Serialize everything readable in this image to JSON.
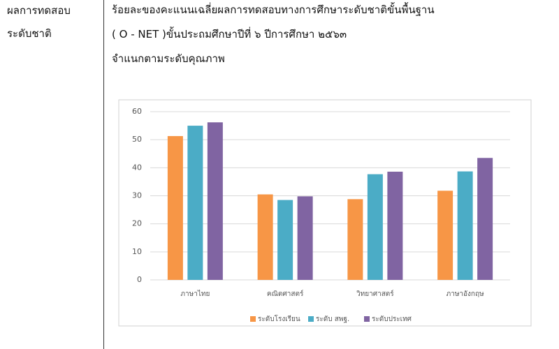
{
  "left_cell": [
    "ผลการทดสอบ",
    "ระดับชาติ"
  ],
  "heading": [
    "ร้อยละของคะแนนเฉลี่ยผลการทดสอบทางการศึกษาระดับชาติขั้นพื้นฐาน",
    "( O - NET )ขั้นประถมศึกษาปีที่  ๖ ปีการศึกษา  ๒๕๖๓",
    "จำแนกตามระดับคุณภาพ"
  ],
  "chart_data": {
    "type": "bar",
    "categories": [
      "ภาษาไทย",
      "คณิตศาสตร์",
      "วิทยาศาสตร์",
      "ภาษาอังกฤษ"
    ],
    "series": [
      {
        "name": "ระดับโรงเรียน",
        "color": "#f79646",
        "values": [
          51.3,
          30.5,
          28.8,
          31.8
        ]
      },
      {
        "name": "ระดับ สพฐ.",
        "color": "#4bacc6",
        "values": [
          55,
          28.5,
          37.7,
          38.7
        ]
      },
      {
        "name": "ระดับประเทศ",
        "color": "#8064a2",
        "values": [
          56.2,
          29.8,
          38.6,
          43.5
        ]
      }
    ],
    "ylim": [
      0,
      60
    ],
    "yticks": [
      0,
      10,
      20,
      30,
      40,
      50,
      60
    ],
    "grid": true,
    "legend": "bottom"
  }
}
